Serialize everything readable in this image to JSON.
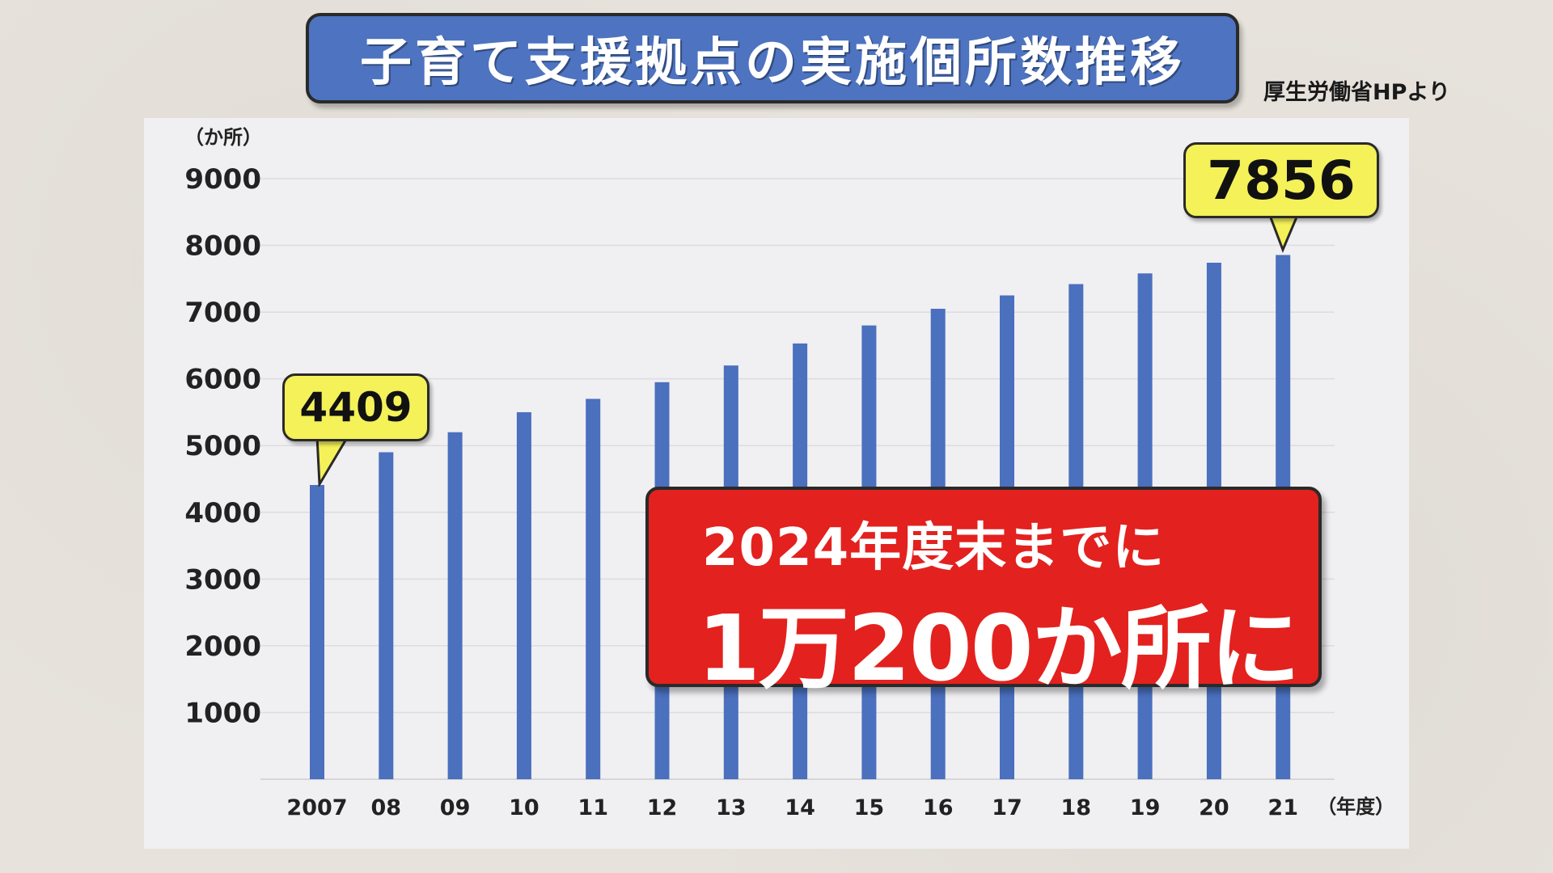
{
  "header": {
    "title": "子育て支援拠点の実施個所数推移",
    "source": "厚生労働省HPより"
  },
  "colors": {
    "bar": "#4a70be",
    "title_bg": "#4d73c1",
    "callout_bg": "#f4f159",
    "highlight_bg": "#e3211e"
  },
  "chart_data": {
    "type": "bar",
    "title": "子育て支援拠点の実施個所数推移",
    "ylabel": "（か所）",
    "xlabel": "（年度）",
    "ylim": [
      0,
      9000
    ],
    "yticks": [
      "1000",
      "2000",
      "3000",
      "4000",
      "5000",
      "6000",
      "7000",
      "8000",
      "9000"
    ],
    "grid": true,
    "categories": [
      "2007",
      "08",
      "09",
      "10",
      "11",
      "12",
      "13",
      "14",
      "15",
      "16",
      "17",
      "18",
      "19",
      "20",
      "21"
    ],
    "values": [
      4409,
      4900,
      5200,
      5500,
      5700,
      5950,
      6200,
      6530,
      6800,
      7050,
      7250,
      7420,
      7580,
      7740,
      7856
    ]
  },
  "callouts": {
    "start": "4409",
    "end": "7856"
  },
  "highlight": {
    "line1": "2024年度末までに",
    "line2": "1万200か所に"
  }
}
